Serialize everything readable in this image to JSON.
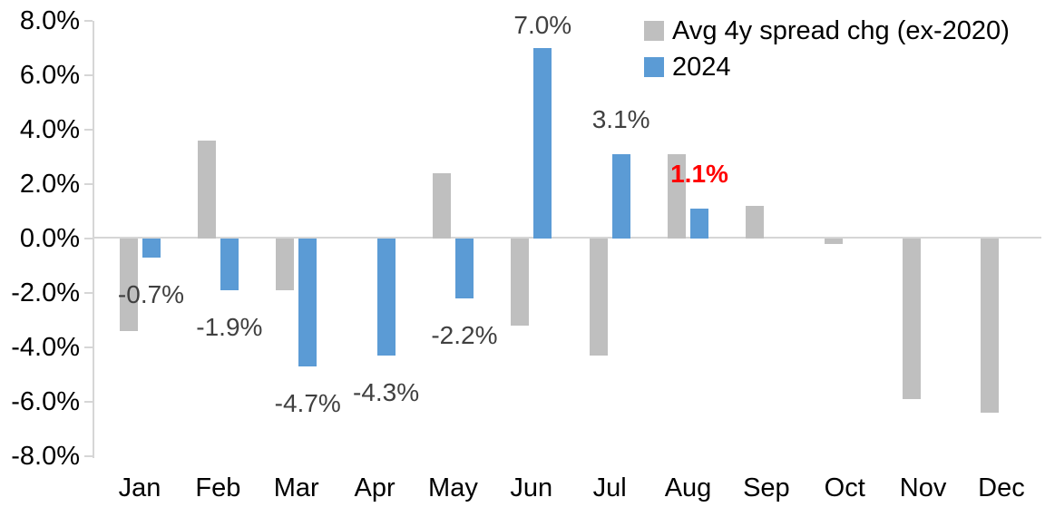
{
  "chart_data": {
    "type": "bar",
    "title": "",
    "categories": [
      "Jan",
      "Feb",
      "Mar",
      "Apr",
      "May",
      "Jun",
      "Jul",
      "Aug",
      "Sep",
      "Oct",
      "Nov",
      "Dec"
    ],
    "series": [
      {
        "name": "Avg 4y spread chg (ex-2020)",
        "color": "#BFBFBF",
        "values": [
          -3.4,
          3.6,
          -1.9,
          0.0,
          2.4,
          -3.2,
          -4.3,
          3.1,
          1.2,
          -0.2,
          -5.9,
          -6.4
        ]
      },
      {
        "name": "2024",
        "color": "#5B9BD5",
        "values": [
          -0.7,
          -1.9,
          -4.7,
          -4.3,
          -2.2,
          7.0,
          3.1,
          1.1,
          null,
          null,
          null,
          null
        ]
      }
    ],
    "y_axis": {
      "min": -8,
      "max": 8,
      "step": 2,
      "unit": "%",
      "tick_labels": [
        "8.0%",
        "6.0%",
        "4.0%",
        "2.0%",
        "0.0%",
        "-2.0%",
        "-4.0%",
        "-6.0%",
        "-8.0%"
      ]
    },
    "data_labels": [
      {
        "month_index": 0,
        "series": "2024",
        "text": "-0.7%",
        "color": "#404040",
        "bold": false
      },
      {
        "month_index": 1,
        "series": "2024",
        "text": "-1.9%",
        "color": "#404040",
        "bold": false
      },
      {
        "month_index": 2,
        "series": "2024",
        "text": "-4.7%",
        "color": "#404040",
        "bold": false
      },
      {
        "month_index": 3,
        "series": "2024",
        "text": "-4.3%",
        "color": "#404040",
        "bold": false
      },
      {
        "month_index": 4,
        "series": "2024",
        "text": "-2.2%",
        "color": "#404040",
        "bold": false
      },
      {
        "month_index": 5,
        "series": "2024",
        "text": "7.0%",
        "color": "#404040",
        "bold": false
      },
      {
        "month_index": 6,
        "series": "2024",
        "text": "3.1%",
        "color": "#404040",
        "bold": false
      },
      {
        "month_index": 7,
        "series": "2024",
        "text": "1.1%",
        "color": "#FF0000",
        "bold": true
      }
    ],
    "legend": {
      "position": "top-right",
      "entries": [
        "Avg 4y spread chg (ex-2020)",
        "2024"
      ]
    },
    "grid": false,
    "axis_color": "#D6D6D6",
    "colors": {
      "gray_series": "#BFBFBF",
      "blue_series": "#5B9BD5",
      "data_label": "#404040",
      "highlight_label": "#FF0000",
      "axis_text": "#000000"
    }
  }
}
